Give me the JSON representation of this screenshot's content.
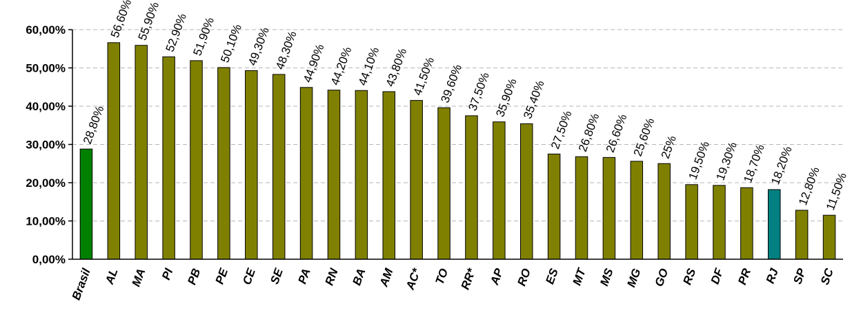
{
  "chart_data": {
    "type": "bar",
    "title": "",
    "xlabel": "",
    "ylabel": "",
    "ylim": [
      0,
      60
    ],
    "yticks": [
      "0,00%",
      "10,00%",
      "20,00%",
      "30,00%",
      "40,00%",
      "50,00%",
      "60,00%"
    ],
    "grid": true,
    "categories": [
      "Brasil",
      "AL",
      "MA",
      "PI",
      "PB",
      "PE",
      "CE",
      "SE",
      "PA",
      "RN",
      "BA",
      "AM",
      "AC*",
      "TO",
      "RR*",
      "AP",
      "RO",
      "ES",
      "MT",
      "MS",
      "MG",
      "GO",
      "RS",
      "DF",
      "PR",
      "RJ",
      "SP",
      "SC"
    ],
    "values": [
      28.8,
      56.6,
      55.9,
      52.9,
      51.9,
      50.1,
      49.3,
      48.3,
      44.9,
      44.2,
      44.1,
      43.8,
      41.5,
      39.6,
      37.5,
      35.9,
      35.4,
      27.5,
      26.8,
      26.6,
      25.6,
      25.0,
      19.5,
      19.3,
      18.7,
      18.2,
      12.8,
      11.5
    ],
    "value_labels": [
      "28,80%",
      "56,60%",
      "55,90%",
      "52,90%",
      "51,90%",
      "50,10%",
      "49,30%",
      "48,30%",
      "44,90%",
      "44,20%",
      "44,10%",
      "43,80%",
      "41,50%",
      "39,60%",
      "37,50%",
      "35,90%",
      "35,40%",
      "27,50%",
      "26,80%",
      "26,60%",
      "25,60%",
      "25%",
      "19,50%",
      "19,30%",
      "18,70%",
      "18,20%",
      "12,80%",
      "11,50%"
    ],
    "colors": {
      "default": "#808000",
      "highlight_brasil": "#008000",
      "highlight_rj": "#008080"
    },
    "bar_colors": [
      "#008000",
      "#808000",
      "#808000",
      "#808000",
      "#808000",
      "#808000",
      "#808000",
      "#808000",
      "#808000",
      "#808000",
      "#808000",
      "#808000",
      "#808000",
      "#808000",
      "#808000",
      "#808000",
      "#808000",
      "#808000",
      "#808000",
      "#808000",
      "#808000",
      "#808000",
      "#808000",
      "#808000",
      "#808000",
      "#008080",
      "#808000",
      "#808000"
    ]
  }
}
